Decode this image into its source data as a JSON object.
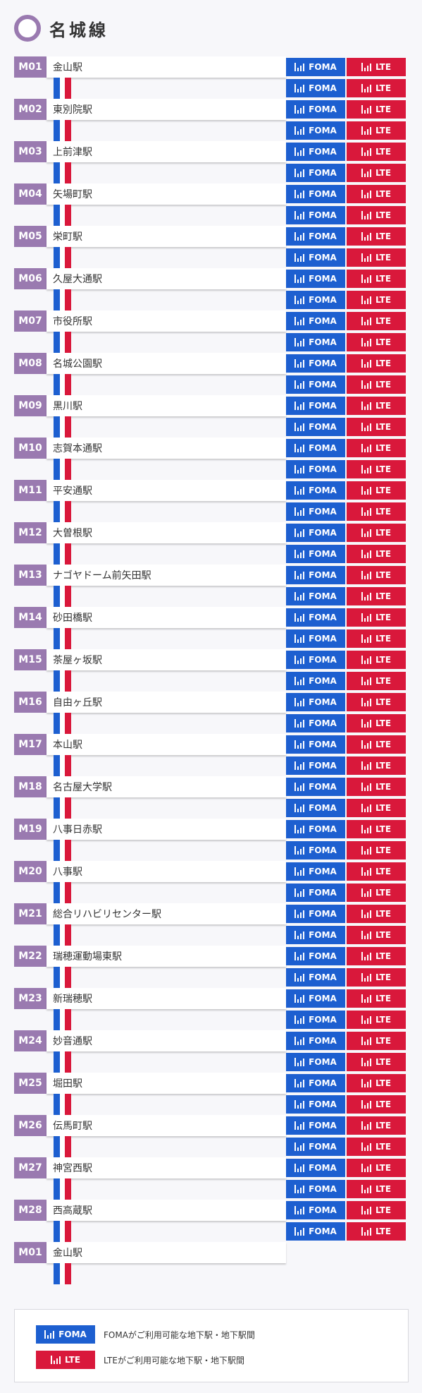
{
  "line": {
    "name": "名城線",
    "color": "#9a7ab0"
  },
  "colors": {
    "foma": "#1d5fd0",
    "lte": "#d9183b"
  },
  "badge_labels": {
    "foma": "FOMA",
    "lte": "LTE",
    "icon": "signal-antenna-icon"
  },
  "stations": [
    {
      "code": "M01",
      "name": "金山駅"
    },
    {
      "code": "M02",
      "name": "東別院駅"
    },
    {
      "code": "M03",
      "name": "上前津駅"
    },
    {
      "code": "M04",
      "name": "矢場町駅"
    },
    {
      "code": "M05",
      "name": "栄町駅"
    },
    {
      "code": "M06",
      "name": "久屋大通駅"
    },
    {
      "code": "M07",
      "name": "市役所駅"
    },
    {
      "code": "M08",
      "name": "名城公園駅"
    },
    {
      "code": "M09",
      "name": "黒川駅"
    },
    {
      "code": "M10",
      "name": "志賀本通駅"
    },
    {
      "code": "M11",
      "name": "平安通駅"
    },
    {
      "code": "M12",
      "name": "大曽根駅"
    },
    {
      "code": "M13",
      "name": "ナゴヤドーム前矢田駅"
    },
    {
      "code": "M14",
      "name": "砂田橋駅"
    },
    {
      "code": "M15",
      "name": "茶屋ヶ坂駅"
    },
    {
      "code": "M16",
      "name": "自由ヶ丘駅"
    },
    {
      "code": "M17",
      "name": "本山駅"
    },
    {
      "code": "M18",
      "name": "名古屋大学駅"
    },
    {
      "code": "M19",
      "name": "八事日赤駅"
    },
    {
      "code": "M20",
      "name": "八事駅"
    },
    {
      "code": "M21",
      "name": "総合リハビリセンター駅"
    },
    {
      "code": "M22",
      "name": "瑞穂運動場東駅"
    },
    {
      "code": "M23",
      "name": "新瑞穂駅"
    },
    {
      "code": "M24",
      "name": "妙音通駅"
    },
    {
      "code": "M25",
      "name": "堀田駅"
    },
    {
      "code": "M26",
      "name": "伝馬町駅"
    },
    {
      "code": "M27",
      "name": "神宮西駅"
    },
    {
      "code": "M28",
      "name": "西高蔵駅"
    },
    {
      "code": "M01",
      "name": "金山駅"
    }
  ],
  "legend": {
    "foma_text": "FOMAがご利用可能な地下駅・地下駅間",
    "lte_text": "LTEがご利用可能な地下駅・地下駅間"
  }
}
